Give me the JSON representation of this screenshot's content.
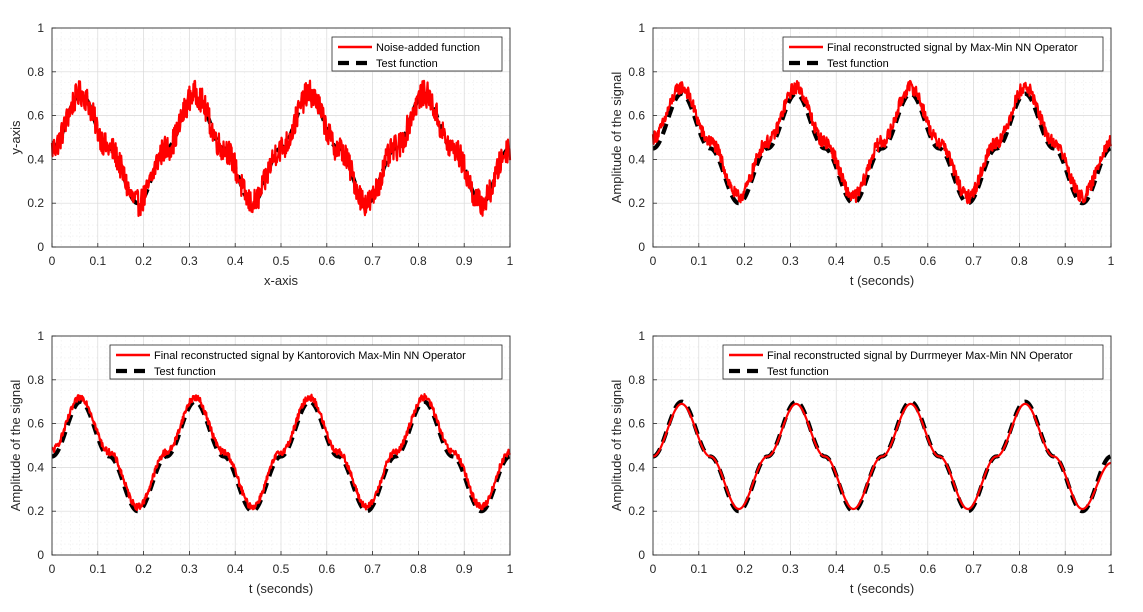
{
  "chart_data": [
    {
      "type": "line",
      "title": "",
      "xlabel": "x-axis",
      "ylabel": "y-axis",
      "xlim": [
        0,
        1
      ],
      "ylim": [
        0,
        1
      ],
      "xticks": [
        "0",
        "0.1",
        "0.2",
        "0.3",
        "0.4",
        "0.5",
        "0.6",
        "0.7",
        "0.8",
        "0.9",
        "1"
      ],
      "yticks": [
        "0",
        "0.2",
        "0.4",
        "0.6",
        "0.8",
        "1"
      ],
      "grid": true,
      "minor_grid": true,
      "legend_position": "top-right",
      "series": [
        {
          "name": "Noise-added   function",
          "color": "#ff0000",
          "style": "solid",
          "noise": 0.06,
          "x": [
            0,
            0.0625,
            0.125,
            0.1875,
            0.25,
            0.3125,
            0.375,
            0.4375,
            0.5,
            0.5625,
            0.625,
            0.6875,
            0.75,
            0.8125,
            0.875,
            0.9375,
            1
          ],
          "y": [
            0.45,
            0.7,
            0.45,
            0.2,
            0.45,
            0.7,
            0.45,
            0.2,
            0.45,
            0.7,
            0.45,
            0.2,
            0.45,
            0.7,
            0.45,
            0.2,
            0.45
          ]
        },
        {
          "name": "Test function",
          "color": "#000000",
          "style": "dashed",
          "x": [
            0,
            0.0625,
            0.125,
            0.1875,
            0.25,
            0.3125,
            0.375,
            0.4375,
            0.5,
            0.5625,
            0.625,
            0.6875,
            0.75,
            0.8125,
            0.875,
            0.9375,
            1
          ],
          "y": [
            0.45,
            0.7,
            0.45,
            0.2,
            0.45,
            0.7,
            0.45,
            0.2,
            0.45,
            0.7,
            0.45,
            0.2,
            0.45,
            0.7,
            0.45,
            0.2,
            0.45
          ]
        }
      ]
    },
    {
      "type": "line",
      "title": "",
      "xlabel": "t (seconds)",
      "ylabel": "Amplitude of the signal",
      "xlim": [
        0,
        1
      ],
      "ylim": [
        0,
        1
      ],
      "xticks": [
        "0",
        "0.1",
        "0.2",
        "0.3",
        "0.4",
        "0.5",
        "0.6",
        "0.7",
        "0.8",
        "0.9",
        "1"
      ],
      "yticks": [
        "0",
        "0.2",
        "0.4",
        "0.6",
        "0.8",
        "1"
      ],
      "grid": true,
      "minor_grid": true,
      "legend_position": "top-right",
      "series": [
        {
          "name": "Final reconstructed signal by Max-Min NN Operator",
          "color": "#ff0000",
          "style": "solid",
          "noise": 0.03,
          "x": [
            0,
            0.0625,
            0.125,
            0.1875,
            0.25,
            0.3125,
            0.375,
            0.4375,
            0.5,
            0.5625,
            0.625,
            0.6875,
            0.75,
            0.8125,
            0.875,
            0.9375,
            1
          ],
          "y": [
            0.5,
            0.73,
            0.48,
            0.23,
            0.48,
            0.73,
            0.48,
            0.23,
            0.48,
            0.73,
            0.48,
            0.23,
            0.48,
            0.73,
            0.48,
            0.23,
            0.48
          ]
        },
        {
          "name": "Test function",
          "color": "#000000",
          "style": "dashed",
          "x": [
            0,
            0.0625,
            0.125,
            0.1875,
            0.25,
            0.3125,
            0.375,
            0.4375,
            0.5,
            0.5625,
            0.625,
            0.6875,
            0.75,
            0.8125,
            0.875,
            0.9375,
            1
          ],
          "y": [
            0.45,
            0.7,
            0.45,
            0.2,
            0.45,
            0.7,
            0.45,
            0.2,
            0.45,
            0.7,
            0.45,
            0.2,
            0.45,
            0.7,
            0.45,
            0.2,
            0.45
          ]
        }
      ]
    },
    {
      "type": "line",
      "title": "",
      "xlabel": "t (seconds)",
      "ylabel": "Amplitude of the signal",
      "xlim": [
        0,
        1
      ],
      "ylim": [
        0,
        1
      ],
      "xticks": [
        "0",
        "0.1",
        "0.2",
        "0.3",
        "0.4",
        "0.5",
        "0.6",
        "0.7",
        "0.8",
        "0.9",
        "1"
      ],
      "yticks": [
        "0",
        "0.2",
        "0.4",
        "0.6",
        "0.8",
        "1"
      ],
      "grid": true,
      "minor_grid": true,
      "legend_position": "top-right",
      "series": [
        {
          "name": "Final reconstructed signal by Kantorovich Max-Min NN Operator",
          "color": "#ff0000",
          "style": "solid",
          "noise": 0.015,
          "x": [
            0,
            0.0625,
            0.125,
            0.1875,
            0.25,
            0.3125,
            0.375,
            0.4375,
            0.5,
            0.5625,
            0.625,
            0.6875,
            0.75,
            0.8125,
            0.875,
            0.9375,
            1
          ],
          "y": [
            0.48,
            0.72,
            0.47,
            0.22,
            0.47,
            0.72,
            0.47,
            0.22,
            0.47,
            0.72,
            0.47,
            0.22,
            0.47,
            0.72,
            0.47,
            0.22,
            0.47
          ]
        },
        {
          "name": "Test function",
          "color": "#000000",
          "style": "dashed",
          "x": [
            0,
            0.0625,
            0.125,
            0.1875,
            0.25,
            0.3125,
            0.375,
            0.4375,
            0.5,
            0.5625,
            0.625,
            0.6875,
            0.75,
            0.8125,
            0.875,
            0.9375,
            1
          ],
          "y": [
            0.45,
            0.7,
            0.45,
            0.2,
            0.45,
            0.7,
            0.45,
            0.2,
            0.45,
            0.7,
            0.45,
            0.2,
            0.45,
            0.7,
            0.45,
            0.2,
            0.45
          ]
        }
      ]
    },
    {
      "type": "line",
      "title": "",
      "xlabel": "t (seconds)",
      "ylabel": "Amplitude of the signal",
      "xlim": [
        0,
        1
      ],
      "ylim": [
        0,
        1
      ],
      "xticks": [
        "0",
        "0.1",
        "0.2",
        "0.3",
        "0.4",
        "0.5",
        "0.6",
        "0.7",
        "0.8",
        "0.9",
        "1"
      ],
      "yticks": [
        "0",
        "0.2",
        "0.4",
        "0.6",
        "0.8",
        "1"
      ],
      "grid": true,
      "minor_grid": true,
      "legend_position": "top-right",
      "series": [
        {
          "name": "Final reconstructed signal by Durrmeyer Max-Min NN Operator",
          "color": "#ff0000",
          "style": "solid",
          "noise": 0,
          "x": [
            0,
            0.0625,
            0.125,
            0.1875,
            0.25,
            0.3125,
            0.375,
            0.4375,
            0.5,
            0.5625,
            0.625,
            0.6875,
            0.75,
            0.8125,
            0.875,
            0.9375,
            1
          ],
          "y": [
            0.45,
            0.69,
            0.45,
            0.21,
            0.45,
            0.69,
            0.45,
            0.21,
            0.45,
            0.69,
            0.45,
            0.21,
            0.45,
            0.69,
            0.45,
            0.21,
            0.42
          ]
        },
        {
          "name": "Test function",
          "color": "#000000",
          "style": "dashed",
          "x": [
            0,
            0.0625,
            0.125,
            0.1875,
            0.25,
            0.3125,
            0.375,
            0.4375,
            0.5,
            0.5625,
            0.625,
            0.6875,
            0.75,
            0.8125,
            0.875,
            0.9375,
            1
          ],
          "y": [
            0.45,
            0.7,
            0.45,
            0.2,
            0.45,
            0.7,
            0.45,
            0.2,
            0.45,
            0.7,
            0.45,
            0.2,
            0.45,
            0.7,
            0.45,
            0.2,
            0.45
          ]
        }
      ]
    }
  ]
}
